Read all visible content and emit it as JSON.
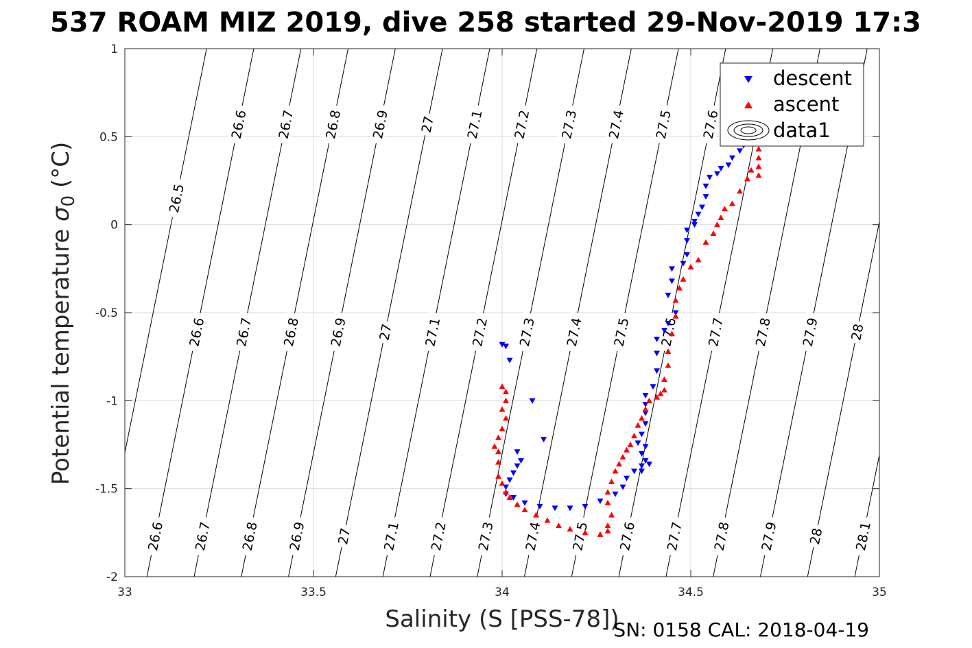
{
  "title": "537 ROAM MIZ 2019, dive 258 started 29-Nov-2019 17:3",
  "footer": "SN: 0158  CAL: 2018-04-19",
  "colors": {
    "descent": "#0000ff",
    "ascent": "#ff0000",
    "contour": "#000000",
    "grid": "#dcdcdc"
  },
  "chart_data": {
    "type": "scatter",
    "xlabel": "Salinity (S [PSS-78])",
    "ylabel_text": "Potential temperature ",
    "ylabel_sigma": "σ",
    "ylabel_sub": "0",
    "ylabel_unit": " (°C)",
    "xlim": [
      33,
      35
    ],
    "ylim": [
      -2,
      1
    ],
    "xticks": [
      "33",
      "33.5",
      "34",
      "34.5",
      "35"
    ],
    "yticks": [
      "1",
      "0.5",
      "0",
      "-0.5",
      "-1",
      "-1.5",
      "-2"
    ],
    "grid": true,
    "legend_position": "top-right",
    "legend": [
      "descent",
      "ascent",
      "data1"
    ],
    "series": [
      {
        "name": "descent",
        "marker": "triangle-down",
        "points": [
          [
            34.0,
            -0.68
          ],
          [
            34.01,
            -0.69
          ],
          [
            34.02,
            -0.77
          ],
          [
            34.08,
            -1.0
          ],
          [
            34.11,
            -1.22
          ],
          [
            34.04,
            -1.29
          ],
          [
            34.05,
            -1.34
          ],
          [
            34.04,
            -1.37
          ],
          [
            34.03,
            -1.41
          ],
          [
            34.02,
            -1.45
          ],
          [
            34.01,
            -1.49
          ],
          [
            34.01,
            -1.53
          ],
          [
            34.03,
            -1.55
          ],
          [
            34.06,
            -1.58
          ],
          [
            34.1,
            -1.6
          ],
          [
            34.14,
            -1.61
          ],
          [
            34.18,
            -1.61
          ],
          [
            34.22,
            -1.6
          ],
          [
            34.26,
            -1.57
          ],
          [
            34.3,
            -1.53
          ],
          [
            34.32,
            -1.49
          ],
          [
            34.33,
            -1.44
          ],
          [
            34.35,
            -1.4
          ],
          [
            34.37,
            -1.37
          ],
          [
            34.38,
            -1.34
          ],
          [
            34.37,
            -1.3
          ],
          [
            34.38,
            -1.26
          ],
          [
            34.39,
            -1.36
          ],
          [
            34.37,
            -1.4
          ],
          [
            34.36,
            -1.24
          ],
          [
            34.37,
            -1.19
          ],
          [
            34.38,
            -1.13
          ],
          [
            34.38,
            -1.07
          ],
          [
            34.38,
            -1.02
          ],
          [
            34.38,
            -0.97
          ],
          [
            34.4,
            -0.92
          ],
          [
            34.41,
            -0.83
          ],
          [
            34.41,
            -0.73
          ],
          [
            34.41,
            -0.65
          ],
          [
            34.43,
            -0.6
          ],
          [
            34.44,
            -0.56
          ],
          [
            34.46,
            -0.5
          ],
          [
            34.44,
            -0.4
          ],
          [
            34.45,
            -0.32
          ],
          [
            34.45,
            -0.25
          ],
          [
            34.48,
            -0.22
          ],
          [
            34.49,
            -0.17
          ],
          [
            34.49,
            -0.09
          ],
          [
            34.49,
            -0.03
          ],
          [
            34.51,
            0.0
          ],
          [
            34.51,
            0.02
          ],
          [
            34.52,
            0.06
          ],
          [
            34.53,
            0.1
          ],
          [
            34.54,
            0.16
          ],
          [
            34.54,
            0.22
          ],
          [
            34.55,
            0.27
          ],
          [
            34.57,
            0.29
          ],
          [
            34.58,
            0.32
          ],
          [
            34.6,
            0.34
          ],
          [
            34.61,
            0.38
          ],
          [
            34.63,
            0.42
          ],
          [
            34.64,
            0.45
          ],
          [
            34.65,
            0.47
          ]
        ]
      },
      {
        "name": "ascent",
        "marker": "triangle-up",
        "points": [
          [
            34.68,
            0.43
          ],
          [
            34.68,
            0.38
          ],
          [
            34.68,
            0.33
          ],
          [
            34.68,
            0.28
          ],
          [
            34.66,
            0.31
          ],
          [
            34.65,
            0.26
          ],
          [
            34.63,
            0.19
          ],
          [
            34.61,
            0.12
          ],
          [
            34.59,
            0.09
          ],
          [
            34.58,
            0.04
          ],
          [
            34.57,
            0.0
          ],
          [
            34.56,
            -0.05
          ],
          [
            34.54,
            -0.1
          ],
          [
            34.52,
            -0.2
          ],
          [
            34.5,
            -0.24
          ],
          [
            34.48,
            -0.31
          ],
          [
            34.47,
            -0.36
          ],
          [
            34.46,
            -0.43
          ],
          [
            34.46,
            -0.52
          ],
          [
            34.45,
            -0.62
          ],
          [
            34.44,
            -0.72
          ],
          [
            34.44,
            -0.8
          ],
          [
            34.43,
            -0.88
          ],
          [
            34.43,
            -0.94
          ],
          [
            34.42,
            -0.96
          ],
          [
            34.41,
            -0.98
          ],
          [
            34.39,
            -1.0
          ],
          [
            34.38,
            -1.05
          ],
          [
            34.37,
            -1.1
          ],
          [
            34.36,
            -1.14
          ],
          [
            34.35,
            -1.2
          ],
          [
            34.34,
            -1.25
          ],
          [
            34.33,
            -1.28
          ],
          [
            34.32,
            -1.32
          ],
          [
            34.31,
            -1.36
          ],
          [
            34.3,
            -1.4
          ],
          [
            34.29,
            -1.46
          ],
          [
            34.28,
            -1.52
          ],
          [
            34.28,
            -1.58
          ],
          [
            34.29,
            -1.65
          ],
          [
            34.28,
            -1.71
          ],
          [
            34.28,
            -1.74
          ],
          [
            34.26,
            -1.76
          ],
          [
            34.22,
            -1.75
          ],
          [
            34.18,
            -1.73
          ],
          [
            34.15,
            -1.71
          ],
          [
            34.12,
            -1.68
          ],
          [
            34.09,
            -1.65
          ],
          [
            34.06,
            -1.62
          ],
          [
            34.04,
            -1.59
          ],
          [
            34.02,
            -1.55
          ],
          [
            34.01,
            -1.52
          ],
          [
            34.0,
            -1.47
          ],
          [
            33.99,
            -1.43
          ],
          [
            33.99,
            -1.35
          ],
          [
            33.99,
            -1.29
          ],
          [
            33.98,
            -1.26
          ],
          [
            33.99,
            -1.21
          ],
          [
            34.0,
            -1.16
          ],
          [
            34.01,
            -1.1
          ],
          [
            34.0,
            -1.05
          ],
          [
            34.01,
            -1.0
          ],
          [
            34.01,
            -0.95
          ],
          [
            34.0,
            -0.92
          ]
        ]
      }
    ],
    "isopycnals": [
      26.5,
      26.6,
      26.7,
      26.8,
      26.9,
      27,
      27.1,
      27.2,
      27.3,
      27.4,
      27.5,
      27.6,
      27.7,
      27.8,
      27.9,
      28,
      28.1
    ],
    "isopycnal_labels": {
      "top": [
        "26.5",
        "26.6",
        "26.7",
        "26.8",
        "26.9",
        "27",
        "27.1",
        "27.2",
        "27.3",
        "27.4",
        "27.5",
        "27.6",
        "27.7"
      ],
      "middle": [
        "26.6",
        "26.7",
        "26.8",
        "26.9",
        "27",
        "27.1",
        "27.2",
        "27.3",
        "27.4",
        "27.5",
        "27.6",
        "27.7",
        "27.8",
        "27.9",
        "28",
        "28.1"
      ],
      "bottom": [
        "26.6",
        "26.7",
        "26.8",
        "26.9",
        "27",
        "27.1",
        "27.2",
        "27.3",
        "27.4",
        "27.5",
        "27.6",
        "27.7",
        "27.8",
        "27.9",
        "28",
        "28.1"
      ]
    }
  }
}
